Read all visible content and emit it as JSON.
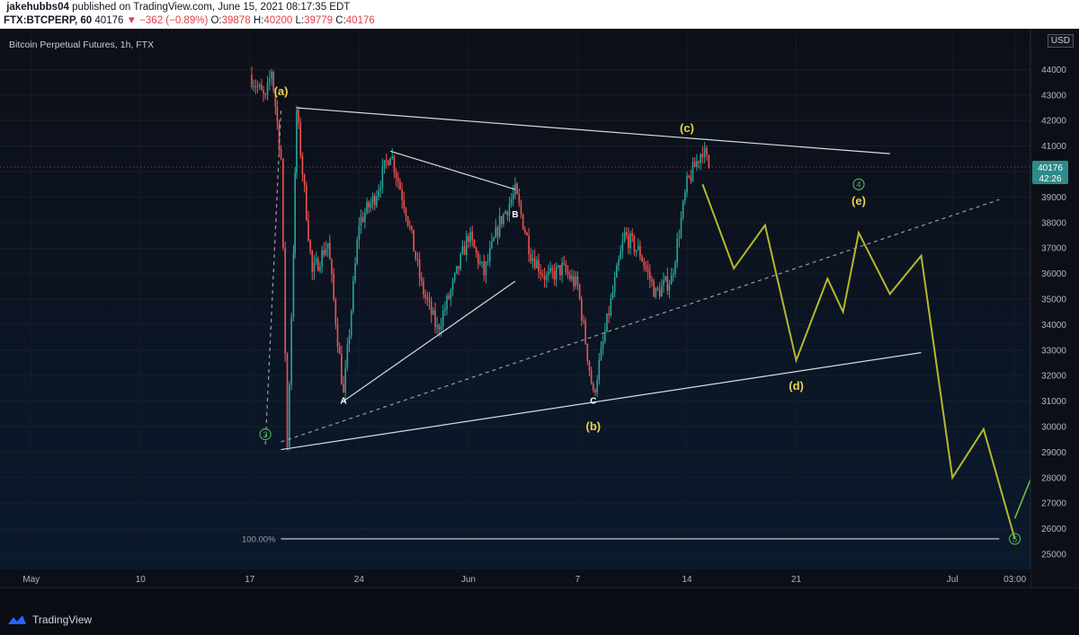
{
  "header": {
    "author": "jakehubbs04",
    "published_text": " published on TradingView.com, June 15, 2021 08:17:35 EDT",
    "symbol": "FTX:BTCPERP, 60",
    "price": "40176",
    "change": "−362 (−0.89%)",
    "open_label": "O:",
    "open": "39878",
    "high_label": "H:",
    "high": "40200",
    "low_label": "L:",
    "low": "39779",
    "close_label": "C:",
    "close": "40176"
  },
  "chart_title": "Bitcoin Perpetual Futures, 1h, FTX",
  "currency": "USD",
  "last_price_tag": "40176",
  "countdown_tag": "42:26",
  "footer": {
    "brand": "TradingView"
  },
  "colors": {
    "background_top": "#0d0f17",
    "background_bottom": "#0a1a2e",
    "up_candle": "#26a69a",
    "down_candle": "#ef5350",
    "projection": "#b5b82c",
    "final_arrow": "#6bbf3f",
    "label_yellow": "#e8d44d",
    "green_circle": "#4caf50",
    "price_tag": "#2e8b8b"
  },
  "chart_data": {
    "type": "candlestick",
    "y_axis": {
      "ticks": [
        25000,
        26000,
        27000,
        28000,
        29000,
        30000,
        31000,
        32000,
        33000,
        34000,
        35000,
        36000,
        37000,
        38000,
        39000,
        40000,
        41000,
        42000,
        43000,
        44000
      ],
      "range": [
        24400,
        45600
      ]
    },
    "x_axis": {
      "ticks": [
        "May",
        "10",
        "17",
        "24",
        "Jun",
        "7",
        "14",
        "21",
        "Jul",
        "03:00"
      ],
      "range": [
        "2021-05-01",
        "2021-07-06"
      ],
      "tick_dates": [
        "2021-05-03",
        "2021-05-10",
        "2021-05-17",
        "2021-05-24",
        "2021-05-31",
        "2021-06-07",
        "2021-06-14",
        "2021-06-21",
        "2021-07-01",
        "2021-07-05"
      ]
    },
    "price_path": [
      [
        "2021-05-17",
        43800
      ],
      [
        "2021-05-18",
        42800
      ],
      [
        "2021-05-18",
        44000
      ],
      [
        "2021-05-19",
        40500
      ],
      [
        "2021-05-19",
        29200
      ],
      [
        "2021-05-19",
        37000
      ],
      [
        "2021-05-20",
        42400
      ],
      [
        "2021-05-21",
        36000
      ],
      [
        "2021-05-22",
        37200
      ],
      [
        "2021-05-23",
        31200
      ],
      [
        "2021-05-24",
        38000
      ],
      [
        "2021-05-25",
        39000
      ],
      [
        "2021-05-26",
        40800
      ],
      [
        "2021-05-27",
        38500
      ],
      [
        "2021-05-28",
        35500
      ],
      [
        "2021-05-29",
        33800
      ],
      [
        "2021-05-30",
        35500
      ],
      [
        "2021-05-31",
        37500
      ],
      [
        "2021-06-01",
        36000
      ],
      [
        "2021-06-02",
        38000
      ],
      [
        "2021-06-03",
        39200
      ],
      [
        "2021-06-04",
        36800
      ],
      [
        "2021-06-05",
        35800
      ],
      [
        "2021-06-06",
        36200
      ],
      [
        "2021-06-07",
        35500
      ],
      [
        "2021-06-08",
        31200
      ],
      [
        "2021-06-09",
        34500
      ],
      [
        "2021-06-10",
        37500
      ],
      [
        "2021-06-11",
        36800
      ],
      [
        "2021-06-12",
        35200
      ],
      [
        "2021-06-13",
        35800
      ],
      [
        "2021-06-14",
        39500
      ],
      [
        "2021-06-15",
        40900
      ],
      [
        "2021-06-15",
        40176
      ]
    ],
    "projection_path": [
      [
        "2021-06-15",
        39500
      ],
      [
        "2021-06-17",
        36200
      ],
      [
        "2021-06-19",
        37900
      ],
      [
        "2021-06-21",
        32600
      ],
      [
        "2021-06-23",
        35800
      ],
      [
        "2021-06-24",
        34500
      ],
      [
        "2021-06-25",
        37600
      ],
      [
        "2021-06-27",
        35200
      ],
      [
        "2021-06-29",
        36700
      ],
      [
        "2021-07-01",
        28000
      ],
      [
        "2021-07-03",
        29900
      ],
      [
        "2021-07-05",
        25600
      ]
    ],
    "final_arrow": {
      "from": [
        "2021-07-05",
        26400
      ],
      "to": [
        "2021-07-10",
        34000
      ]
    },
    "trendlines": [
      {
        "name": "upper-triangle",
        "from": [
          "2021-05-20",
          42500
        ],
        "to": [
          "2021-06-27",
          40700
        ]
      },
      {
        "name": "lower-triangle",
        "from": [
          "2021-05-19",
          29100
        ],
        "to": [
          "2021-06-29",
          32900
        ]
      },
      {
        "name": "abc-upper",
        "from": [
          "2021-05-26",
          40800
        ],
        "to": [
          "2021-06-03",
          39300
        ]
      },
      {
        "name": "abc-lower",
        "from": [
          "2021-05-23",
          31000
        ],
        "to": [
          "2021-06-03",
          35700
        ]
      },
      {
        "name": "dashed-b-e",
        "from": [
          "2021-05-19",
          29400
        ],
        "to": [
          "2021-07-04",
          38900
        ],
        "dashed": true
      },
      {
        "name": "dashed-vertical",
        "from": [
          "2021-05-18",
          29300
        ],
        "to": [
          "2021-05-19",
          42400
        ],
        "dashed": true
      },
      {
        "name": "fib-100",
        "from": [
          "2021-05-19",
          25600
        ],
        "to": [
          "2021-07-04",
          25600
        ]
      }
    ],
    "fib_label": "100.00%",
    "wave_labels": [
      {
        "text": "(a)",
        "at": [
          "2021-05-19",
          43000
        ],
        "color": "yellow"
      },
      {
        "text": "(b)",
        "at": [
          "2021-06-08",
          29850
        ],
        "color": "yellow"
      },
      {
        "text": "(c)",
        "at": [
          "2021-06-14",
          41550
        ],
        "color": "yellow"
      },
      {
        "text": "(d)",
        "at": [
          "2021-06-21",
          31450
        ],
        "color": "yellow"
      },
      {
        "text": "(e)",
        "at": [
          "2021-06-25",
          38700
        ],
        "color": "yellow"
      },
      {
        "text": "A",
        "at": [
          "2021-05-23",
          30900
        ],
        "color": "white"
      },
      {
        "text": "B",
        "at": [
          "2021-06-03",
          38200
        ],
        "color": "white"
      },
      {
        "text": "C",
        "at": [
          "2021-06-08",
          30900
        ],
        "color": "white"
      }
    ],
    "circled_labels": [
      {
        "text": "3",
        "at": [
          "2021-05-18",
          29700
        ]
      },
      {
        "text": "4",
        "at": [
          "2021-06-25",
          39500
        ]
      },
      {
        "text": "5",
        "at": [
          "2021-07-05",
          25600
        ]
      }
    ]
  }
}
